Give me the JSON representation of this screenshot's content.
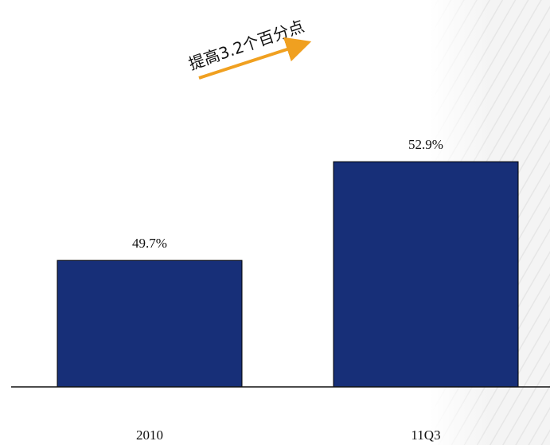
{
  "chart_data": {
    "type": "bar",
    "annotation": "提高3.2个百分点",
    "categories": [
      "2010",
      "11Q3"
    ],
    "values": [
      49.7,
      52.9
    ],
    "value_labels": [
      "49.7%",
      "52.9%"
    ],
    "color": "#172f78",
    "ylim": [
      45.6,
      56
    ]
  }
}
